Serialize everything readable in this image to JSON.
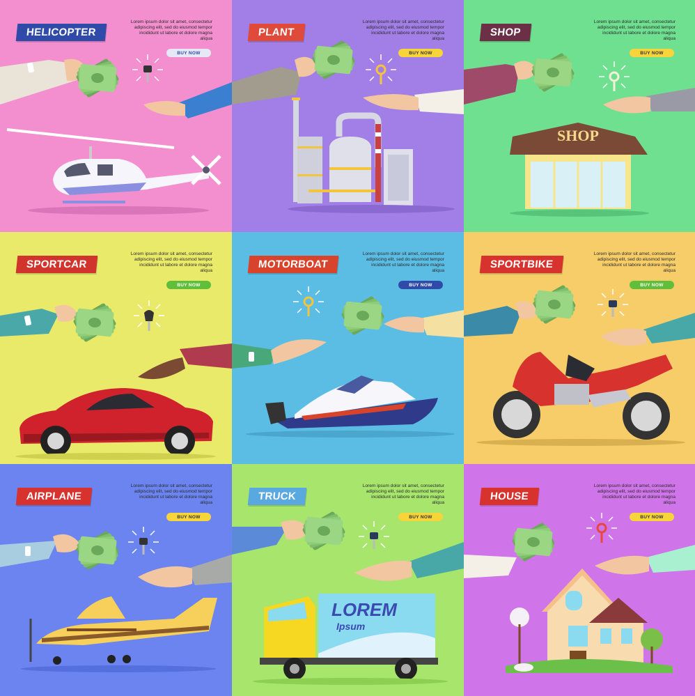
{
  "colors": {
    "pink": "#f38fce",
    "purple": "#a17fe6",
    "green": "#6fdf90",
    "yellow": "#e9ea6a",
    "sky": "#5bbde3",
    "orange": "#f6cd68",
    "blue": "#6b84ef",
    "lime": "#a7e56c",
    "violet": "#cf74e9",
    "money": "#7fbf6b"
  },
  "lorem": "Lorem ipsum dolor sit amet, consectetur adipiscing elit, sed do eiusmod tempor incididunt ut labore et dolore magna aliqua",
  "buy_label": "BUY NOW",
  "truck_lorem": "LOREM",
  "truck_ipsum": "Ipsum",
  "shop_sign": "SHOP",
  "tiles": [
    {
      "title": "HELICOPTER"
    },
    {
      "title": "PLANT"
    },
    {
      "title": "SHOP"
    },
    {
      "title": "SPORTCAR"
    },
    {
      "title": "MOTORBOAT"
    },
    {
      "title": "SPORTBIKE"
    },
    {
      "title": "AIRPLANE"
    },
    {
      "title": "TRUCK"
    },
    {
      "title": "HOUSE"
    }
  ]
}
